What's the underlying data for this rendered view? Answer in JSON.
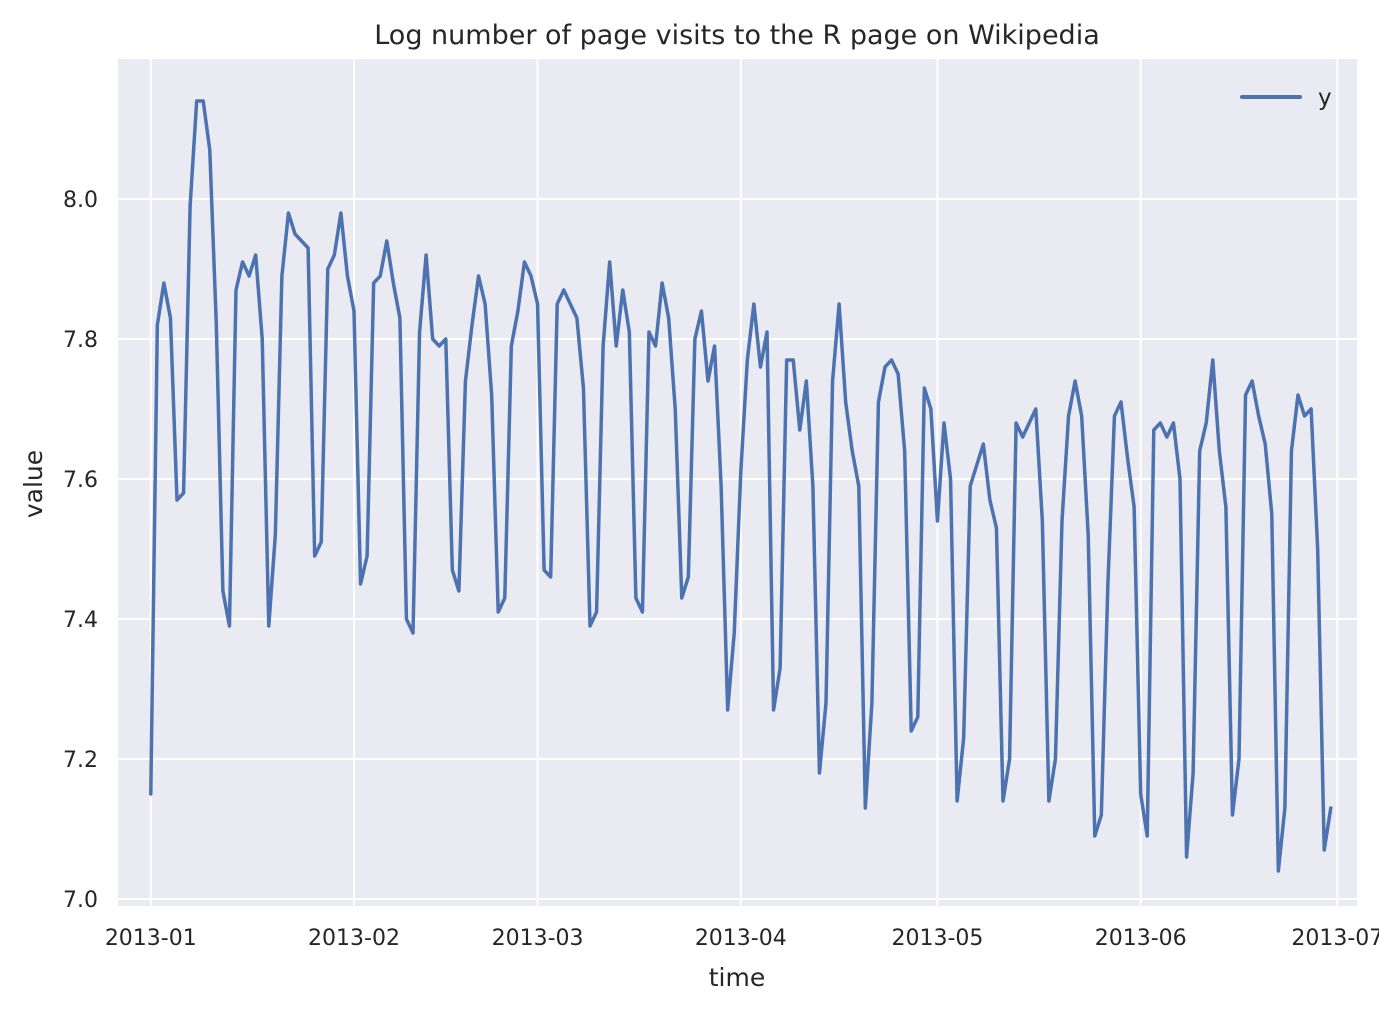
{
  "chart_data": {
    "type": "line",
    "title": "Log number of page visits to the R page on Wikipedia",
    "xlabel": "time",
    "ylabel": "value",
    "x_range": [
      "2012-12-27",
      "2013-07-04"
    ],
    "ylim": [
      6.99,
      8.2
    ],
    "x_ticks": [
      {
        "date": "2013-01-01",
        "label": "2013-01"
      },
      {
        "date": "2013-02-01",
        "label": "2013-02"
      },
      {
        "date": "2013-03-01",
        "label": "2013-03"
      },
      {
        "date": "2013-04-01",
        "label": "2013-04"
      },
      {
        "date": "2013-05-01",
        "label": "2013-05"
      },
      {
        "date": "2013-06-01",
        "label": "2013-06"
      },
      {
        "date": "2013-07-01",
        "label": "2013-07"
      }
    ],
    "y_ticks": [
      {
        "value": 7.0,
        "label": "7.0"
      },
      {
        "value": 7.2,
        "label": "7.2"
      },
      {
        "value": 7.4,
        "label": "7.4"
      },
      {
        "value": 7.6,
        "label": "7.6"
      },
      {
        "value": 7.8,
        "label": "7.8"
      },
      {
        "value": 8.0,
        "label": "8.0"
      }
    ],
    "grid": true,
    "legend_position": "top-right",
    "colors": {
      "background": "#eaeaf2",
      "grid": "#ffffff",
      "line": "#4c72b0"
    },
    "series": [
      {
        "name": "y",
        "start_date": "2013-01-01",
        "values": [
          7.15,
          7.82,
          7.88,
          7.83,
          7.57,
          7.58,
          7.99,
          8.14,
          8.14,
          8.07,
          7.82,
          7.44,
          7.39,
          7.87,
          7.91,
          7.89,
          7.92,
          7.8,
          7.39,
          7.52,
          7.89,
          7.98,
          7.95,
          7.94,
          7.93,
          7.49,
          7.51,
          7.9,
          7.92,
          7.98,
          7.89,
          7.84,
          7.45,
          7.49,
          7.88,
          7.89,
          7.94,
          7.88,
          7.83,
          7.4,
          7.38,
          7.81,
          7.92,
          7.8,
          7.79,
          7.8,
          7.47,
          7.44,
          7.74,
          7.82,
          7.89,
          7.85,
          7.72,
          7.41,
          7.43,
          7.79,
          7.84,
          7.91,
          7.89,
          7.85,
          7.47,
          7.46,
          7.85,
          7.87,
          7.85,
          7.83,
          7.73,
          7.39,
          7.41,
          7.79,
          7.91,
          7.79,
          7.87,
          7.81,
          7.43,
          7.41,
          7.81,
          7.79,
          7.88,
          7.83,
          7.7,
          7.43,
          7.46,
          7.8,
          7.84,
          7.74,
          7.79,
          7.59,
          7.27,
          7.38,
          7.61,
          7.77,
          7.85,
          7.76,
          7.81,
          7.27,
          7.33,
          7.77,
          7.77,
          7.67,
          7.74,
          7.59,
          7.18,
          7.28,
          7.74,
          7.85,
          7.71,
          7.64,
          7.59,
          7.13,
          7.28,
          7.71,
          7.76,
          7.77,
          7.75,
          7.64,
          7.24,
          7.26,
          7.73,
          7.7,
          7.54,
          7.68,
          7.6,
          7.14,
          7.23,
          7.59,
          7.62,
          7.65,
          7.57,
          7.53,
          7.14,
          7.2,
          7.68,
          7.66,
          7.68,
          7.7,
          7.54,
          7.14,
          7.2,
          7.54,
          7.69,
          7.74,
          7.69,
          7.52,
          7.09,
          7.12,
          7.45,
          7.69,
          7.71,
          7.63,
          7.56,
          7.15,
          7.09,
          7.67,
          7.68,
          7.66,
          7.68,
          7.6,
          7.06,
          7.18,
          7.64,
          7.68,
          7.77,
          7.64,
          7.56,
          7.12,
          7.2,
          7.72,
          7.74,
          7.69,
          7.65,
          7.55,
          7.04,
          7.13,
          7.64,
          7.72,
          7.69,
          7.7,
          7.5,
          7.07,
          7.13
        ]
      }
    ]
  }
}
